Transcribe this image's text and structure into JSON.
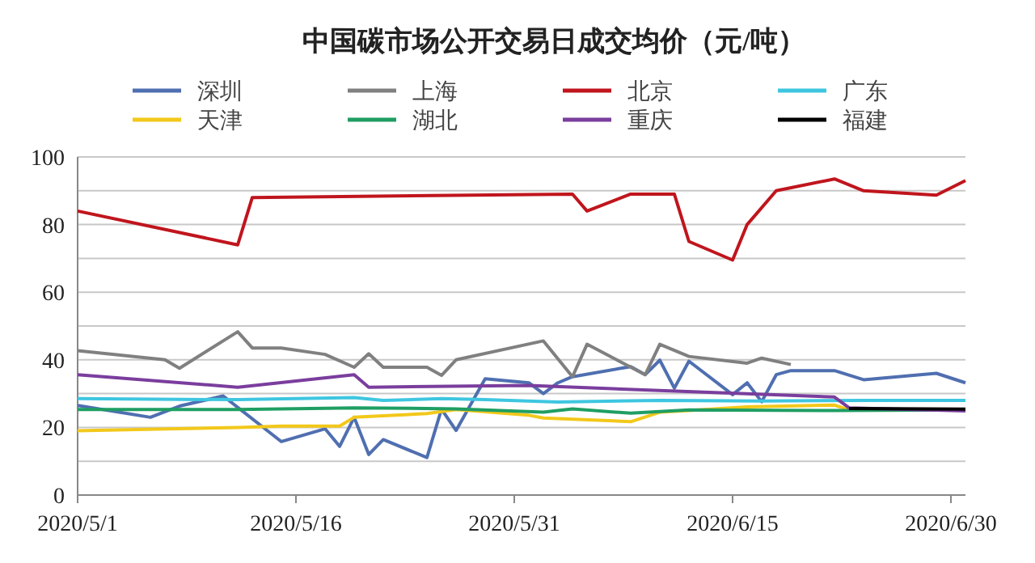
{
  "chart_data": {
    "type": "line",
    "title": "中国碳市场公开交易日成交均价（元/吨）",
    "legend": "top",
    "grid": "y",
    "xlim": [
      "2020-05-01",
      "2020-07-01"
    ],
    "xticks": [
      {
        "value": "2020-05-01",
        "label": "2020/5/1"
      },
      {
        "value": "2020-05-16",
        "label": "2020/5/16"
      },
      {
        "value": "2020-05-31",
        "label": "2020/5/31"
      },
      {
        "value": "2020-06-15",
        "label": "2020/6/15"
      },
      {
        "value": "2020-06-30",
        "label": "2020/6/30"
      }
    ],
    "ylim": [
      0,
      100
    ],
    "yticks": [
      0,
      {
        "value": 10,
        "label": null
      },
      20,
      {
        "value": 30,
        "label": null
      },
      40,
      {
        "value": 50,
        "label": null
      },
      60,
      {
        "value": 70,
        "label": null
      },
      80,
      {
        "value": 90,
        "label": null
      },
      100
    ],
    "series": [
      {
        "name": "深圳",
        "color": "#4f6fb0",
        "x": [
          "2020-05-01",
          "2020-05-06",
          "2020-05-08",
          "2020-05-11",
          "2020-05-15",
          "2020-05-18",
          "2020-05-19",
          "2020-05-20",
          "2020-05-21",
          "2020-05-22",
          "2020-05-25",
          "2020-05-26",
          "2020-05-27",
          "2020-05-29",
          "2020-06-01",
          "2020-06-02",
          "2020-06-03",
          "2020-06-04",
          "2020-06-08",
          "2020-06-09",
          "2020-06-10",
          "2020-06-11",
          "2020-06-12",
          "2020-06-15",
          "2020-06-16",
          "2020-06-17",
          "2020-06-18",
          "2020-06-19",
          "2020-06-22",
          "2020-06-24",
          "2020-06-29",
          "2020-07-01"
        ],
        "values": [
          26.5,
          23,
          26.3,
          29.3,
          15.8,
          19.6,
          14.4,
          23,
          12,
          16.4,
          11.1,
          25.4,
          19.1,
          34.4,
          33.2,
          30,
          33.2,
          35,
          38,
          35.6,
          39.9,
          31.6,
          39.6,
          29.7,
          33.2,
          27.6,
          35.6,
          36.8,
          36.8,
          34.1,
          36,
          33.2
        ]
      },
      {
        "name": "上海",
        "color": "#808080",
        "x": [
          "2020-05-01",
          "2020-05-07",
          "2020-05-08",
          "2020-05-12",
          "2020-05-13",
          "2020-05-15",
          "2020-05-18",
          "2020-05-20",
          "2020-05-21",
          "2020-05-22",
          "2020-05-25",
          "2020-05-26",
          "2020-05-27",
          "2020-06-02",
          "2020-06-04",
          "2020-06-05",
          "2020-06-09",
          "2020-06-10",
          "2020-06-12",
          "2020-06-16",
          "2020-06-17",
          "2020-06-19"
        ],
        "values": [
          42.7,
          40,
          37.5,
          48.3,
          43.5,
          43.5,
          41.6,
          37.8,
          41.8,
          37.8,
          37.8,
          35.4,
          40,
          45.6,
          35,
          44.6,
          35.6,
          44.6,
          41,
          39,
          40.5,
          38.6
        ]
      },
      {
        "name": "北京",
        "color": "#c0151d",
        "x": [
          "2020-05-01",
          "2020-05-12",
          "2020-05-13",
          "2020-06-04",
          "2020-06-05",
          "2020-06-08",
          "2020-06-11",
          "2020-06-12",
          "2020-06-15",
          "2020-06-16",
          "2020-06-18",
          "2020-06-22",
          "2020-06-24",
          "2020-06-29",
          "2020-07-01"
        ],
        "values": [
          84,
          74,
          88,
          89,
          84,
          89,
          89,
          75,
          69.5,
          80,
          90,
          93.5,
          90,
          88.7,
          93
        ]
      },
      {
        "name": "广东",
        "color": "#3ec6e0",
        "x": [
          "2020-05-01",
          "2020-05-12",
          "2020-05-20",
          "2020-05-22",
          "2020-05-26",
          "2020-05-29",
          "2020-06-03",
          "2020-06-10",
          "2020-06-17",
          "2020-06-24",
          "2020-07-01"
        ],
        "values": [
          28.5,
          28.2,
          28.8,
          28,
          28.5,
          28.2,
          27.5,
          28,
          27.8,
          28,
          28
        ]
      },
      {
        "name": "天津",
        "color": "#f2c81a",
        "x": [
          "2020-05-01",
          "2020-05-12",
          "2020-05-15",
          "2020-05-19",
          "2020-05-20",
          "2020-05-25",
          "2020-05-27",
          "2020-06-01",
          "2020-06-02",
          "2020-06-08",
          "2020-06-10",
          "2020-06-12",
          "2020-06-16",
          "2020-06-22",
          "2020-06-23"
        ],
        "values": [
          19,
          20,
          20.4,
          20.4,
          23,
          24.1,
          25.3,
          23.6,
          22.8,
          21.7,
          24.5,
          25,
          26.1,
          26.6,
          25.2
        ]
      },
      {
        "name": "湖北",
        "color": "#1f9e63",
        "x": [
          "2020-05-01",
          "2020-05-12",
          "2020-05-20",
          "2020-05-27",
          "2020-06-02",
          "2020-06-04",
          "2020-06-08",
          "2020-06-12",
          "2020-06-22",
          "2020-07-01"
        ],
        "values": [
          25.3,
          25.3,
          25.8,
          25.5,
          24.5,
          25.5,
          24.2,
          25.2,
          25,
          25.2
        ]
      },
      {
        "name": "重庆",
        "color": "#7a3e9d",
        "x": [
          "2020-05-01",
          "2020-05-12",
          "2020-05-20",
          "2020-05-21",
          "2020-06-01",
          "2020-06-22",
          "2020-06-23",
          "2020-07-01"
        ],
        "values": [
          35.6,
          31.9,
          35.6,
          31.9,
          32.4,
          29,
          25.8,
          24.9
        ]
      },
      {
        "name": "福建",
        "color": "#000000",
        "x": [
          "2020-06-23",
          "2020-07-01"
        ],
        "values": [
          25.6,
          25.4
        ]
      }
    ]
  }
}
